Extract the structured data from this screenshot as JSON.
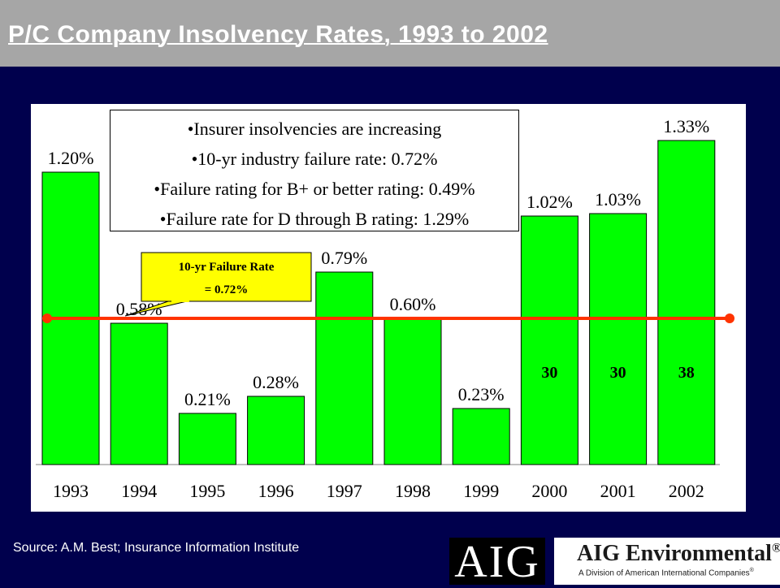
{
  "title": "P/C Company Insolvency Rates, 1993 to 2002",
  "bullets": [
    "•Insurer insolvencies are increasing",
    "•10-yr industry failure rate: 0.72%",
    "•Failure rating for B+ or better rating: 0.49%",
    "•Failure rate for D through B rating: 1.29%"
  ],
  "callout": {
    "line1": "10-yr Failure Rate",
    "line2": "= 0.72%"
  },
  "source": "Source:  A.M. Best; Insurance Information Institute",
  "logo": {
    "mark": "AIG",
    "name": "AIG Environmental",
    "registered": "®",
    "tagline": "A Division of American International Companies",
    "tagline_mark": "®"
  },
  "colors": {
    "bar": "#00ff00",
    "reference_line": "#ff3300",
    "callout_fill": "#ffff00",
    "background": "#00004d",
    "header": "#a6a6a6"
  },
  "chart_data": {
    "type": "bar",
    "categories": [
      "1993",
      "1994",
      "1995",
      "1996",
      "1997",
      "1998",
      "1999",
      "2000",
      "2001",
      "2002"
    ],
    "values": [
      1.2,
      0.58,
      0.21,
      0.28,
      0.79,
      0.6,
      0.23,
      1.02,
      1.03,
      1.33
    ],
    "value_labels": [
      "1.20%",
      "0.58%",
      "0.21%",
      "0.28%",
      "0.79%",
      "0.60%",
      "0.23%",
      "1.02%",
      "1.03%",
      "1.33%"
    ],
    "count_labels": [
      "",
      "",
      "",
      "",
      "",
      "",
      "",
      "30",
      "30",
      "38"
    ],
    "reference_line": {
      "value": 0.72
    },
    "ylim": [
      0,
      1.4
    ],
    "grid": false,
    "title": "",
    "xlabel": "",
    "ylabel": ""
  }
}
